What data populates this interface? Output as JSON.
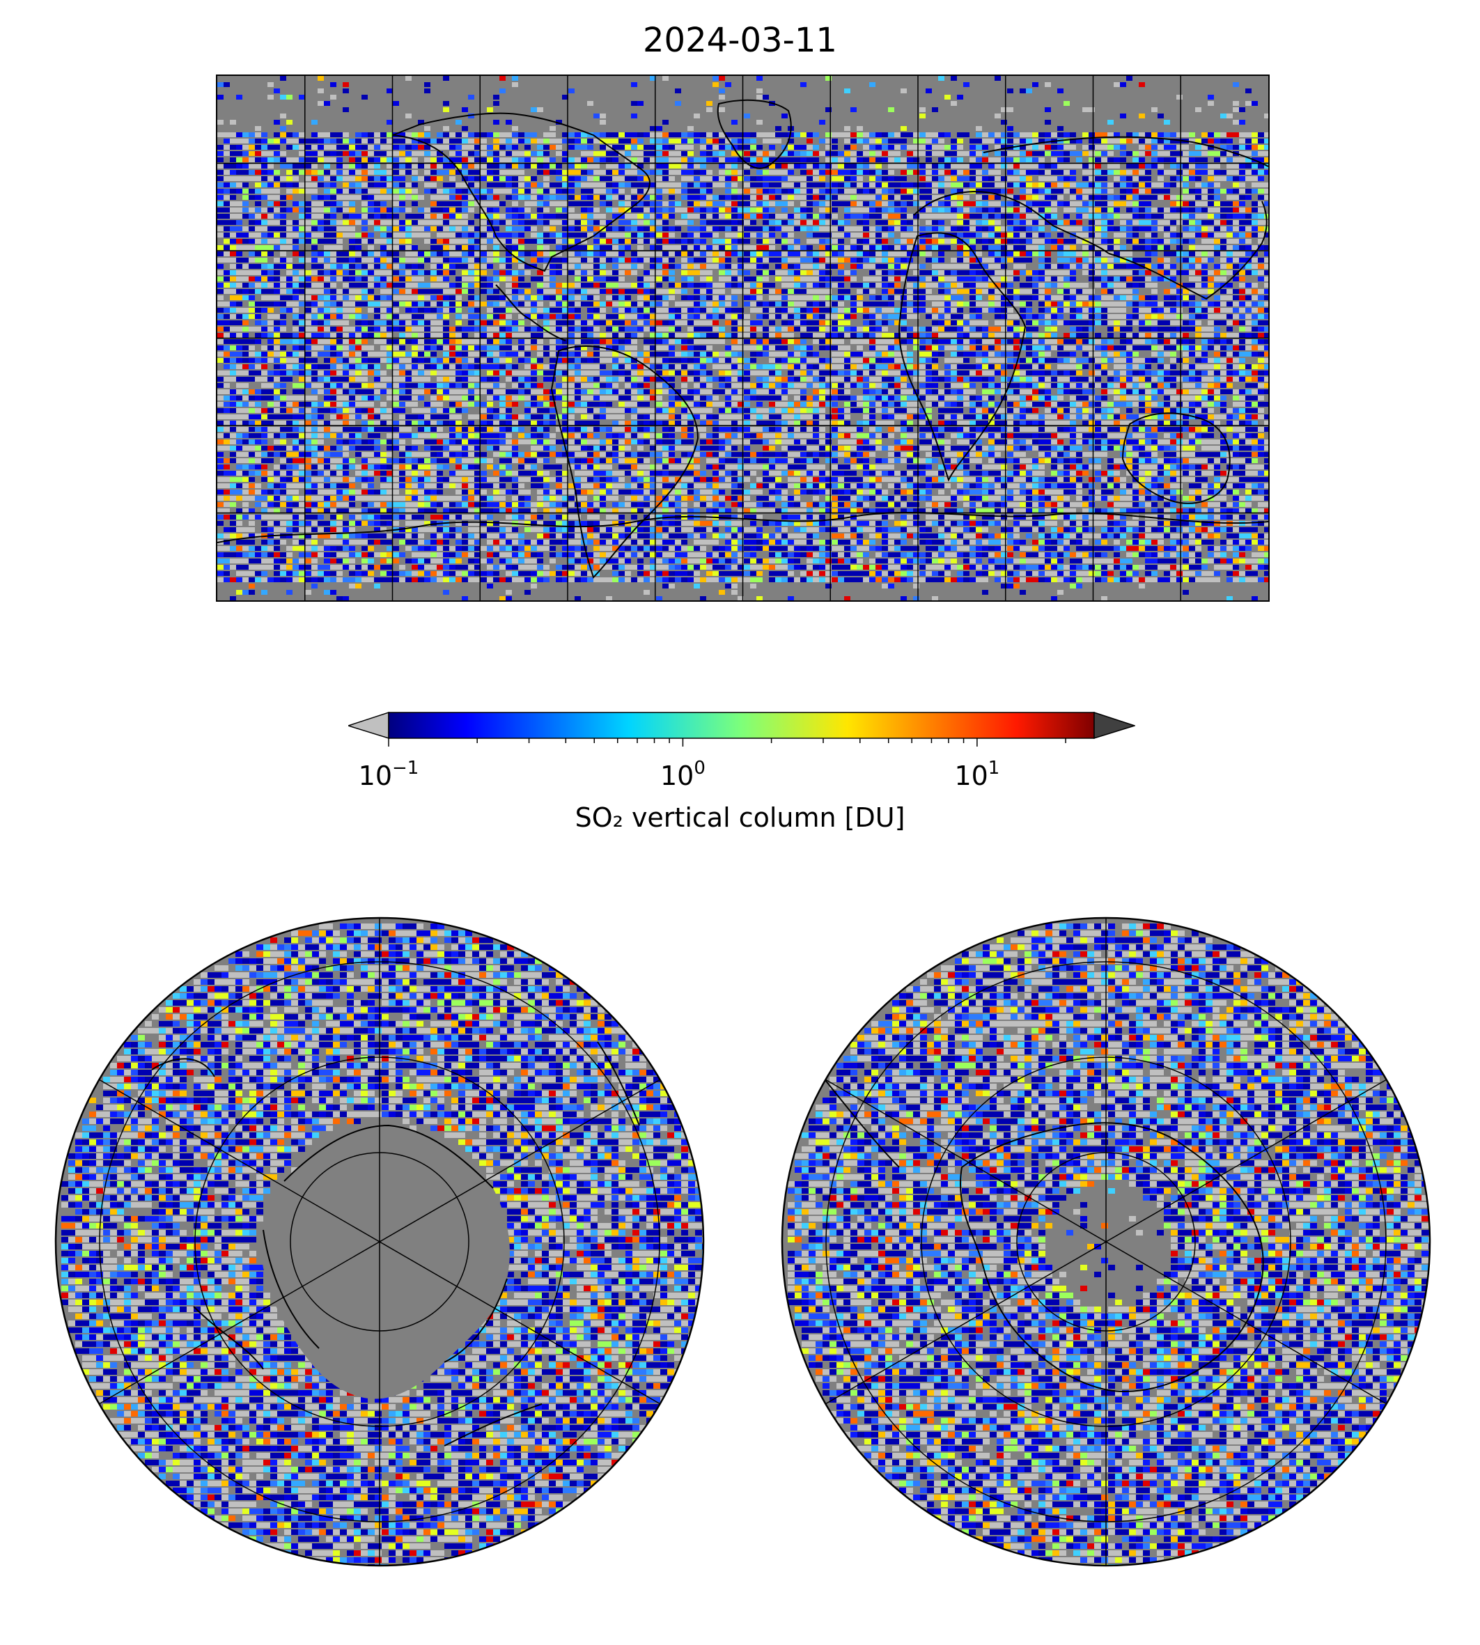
{
  "title": "2024-03-11",
  "colorbar": {
    "label": "SO₂ vertical column [DU]",
    "scale": "log",
    "range": [
      0.1,
      25
    ],
    "ticks": [
      {
        "base": "10",
        "exp": "−1",
        "value": 0.1
      },
      {
        "base": "10",
        "exp": "0",
        "value": 1
      },
      {
        "base": "10",
        "exp": "1",
        "value": 10
      }
    ],
    "colormap": "jet",
    "under_color": "#c0c0c0",
    "over_color": "#404040"
  },
  "colors": {
    "ocean_nodata": "#808080",
    "low_values": "#c0c0c0",
    "coastline": "#000000",
    "gridline": "#000000"
  },
  "maps": [
    {
      "name": "global",
      "projection": "plate-carree",
      "grid": true
    },
    {
      "name": "north-polar",
      "projection": "north-polar-stereographic",
      "grid": true
    },
    {
      "name": "south-polar",
      "projection": "south-polar-stereographic",
      "grid": true
    }
  ]
}
